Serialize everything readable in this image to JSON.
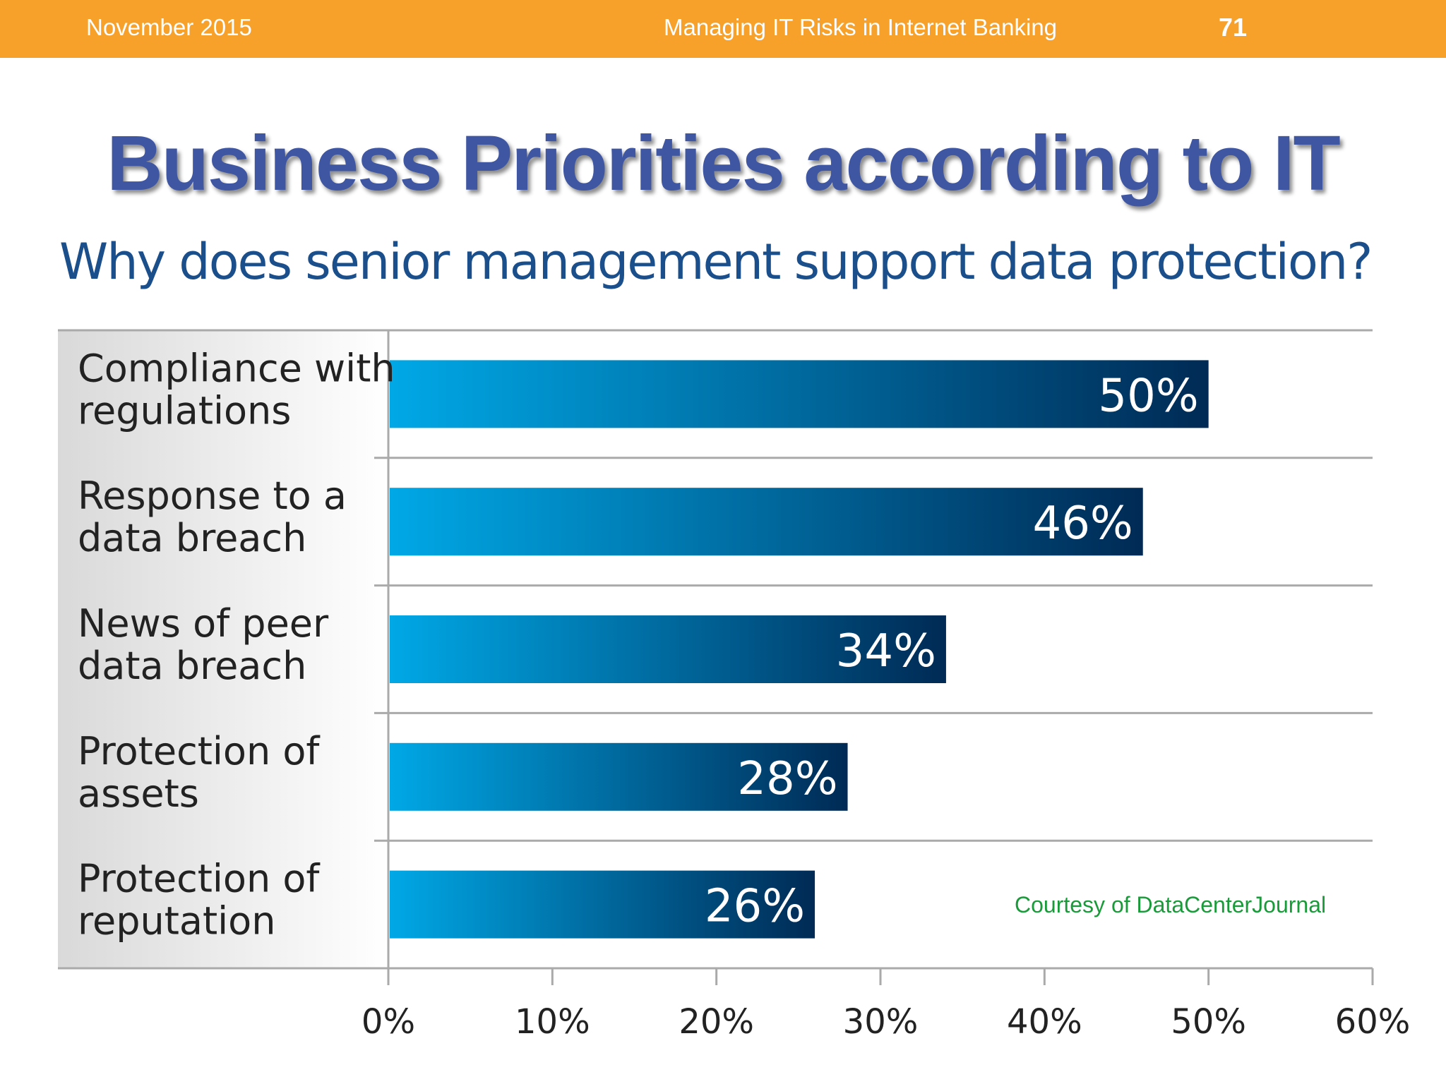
{
  "header": {
    "date": "November 2015",
    "deck_title": "Managing IT Risks in Internet Banking",
    "page_number": "71",
    "bar_color": "#f7a02a"
  },
  "slide": {
    "title": "Business Priorities according to IT",
    "courtesy": "Courtesy of DataCenterJournal"
  },
  "chart_data": {
    "type": "bar",
    "orientation": "horizontal",
    "title": "Why does senior management support data protection?",
    "categories": [
      [
        "Compliance with",
        "regulations"
      ],
      [
        "Response to a",
        "data breach"
      ],
      [
        "News of peer",
        "data breach"
      ],
      [
        "Protection of",
        "assets"
      ],
      [
        "Protection of",
        "reputation"
      ]
    ],
    "values": [
      50,
      46,
      34,
      28,
      26
    ],
    "value_labels": [
      "50%",
      "46%",
      "34%",
      "28%",
      "26%"
    ],
    "xlim": [
      0,
      60
    ],
    "xticks": [
      0,
      10,
      20,
      30,
      40,
      50,
      60
    ],
    "xtick_labels": [
      "0%",
      "10%",
      "20%",
      "30%",
      "40%",
      "50%",
      "60%"
    ],
    "grid": false,
    "bar_gradient": [
      "#00a8e6",
      "#002a55"
    ]
  }
}
